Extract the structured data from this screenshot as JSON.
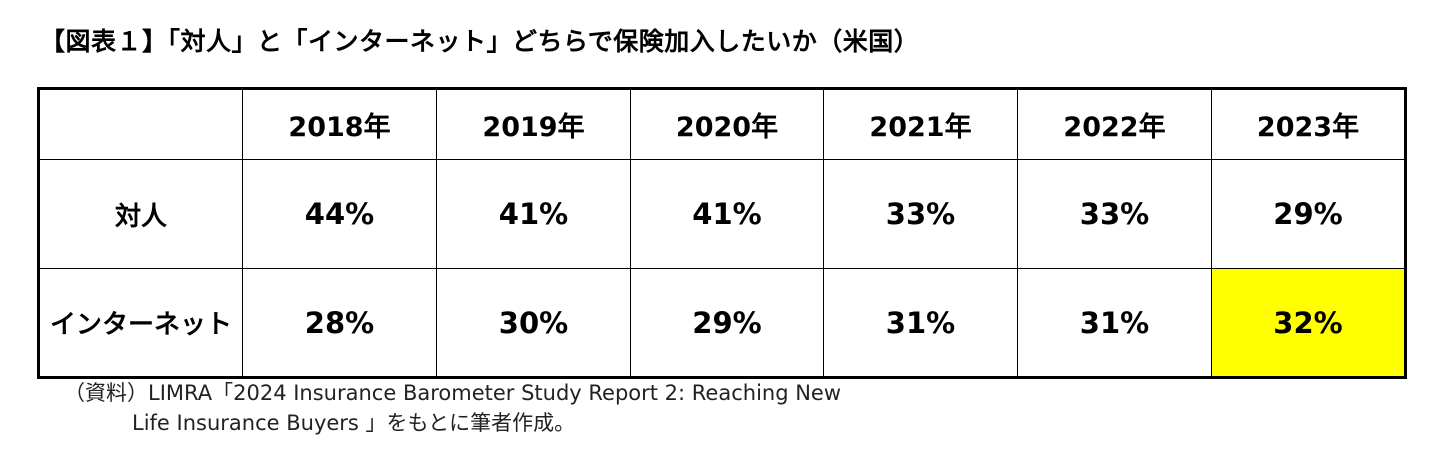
{
  "title": "【図表１】「対人」と「インターネット」どちらで保険加入したいか（米国）",
  "table": {
    "corner": "",
    "columns": [
      "2018年",
      "2019年",
      "2020年",
      "2021年",
      "2022年",
      "2023年"
    ],
    "rows": [
      {
        "label": "対人",
        "values": [
          "44%",
          "41%",
          "41%",
          "33%",
          "33%",
          "29%"
        ]
      },
      {
        "label": "インターネット",
        "values": [
          "28%",
          "30%",
          "29%",
          "31%",
          "31%",
          "32%"
        ]
      }
    ],
    "highlight_color": "#ffff00"
  },
  "source": {
    "line1": "（資料）LIMRA「2024 Insurance Barometer Study  Report 2: Reaching New",
    "line2": "Life Insurance Buyers 」をもとに筆者作成。"
  }
}
